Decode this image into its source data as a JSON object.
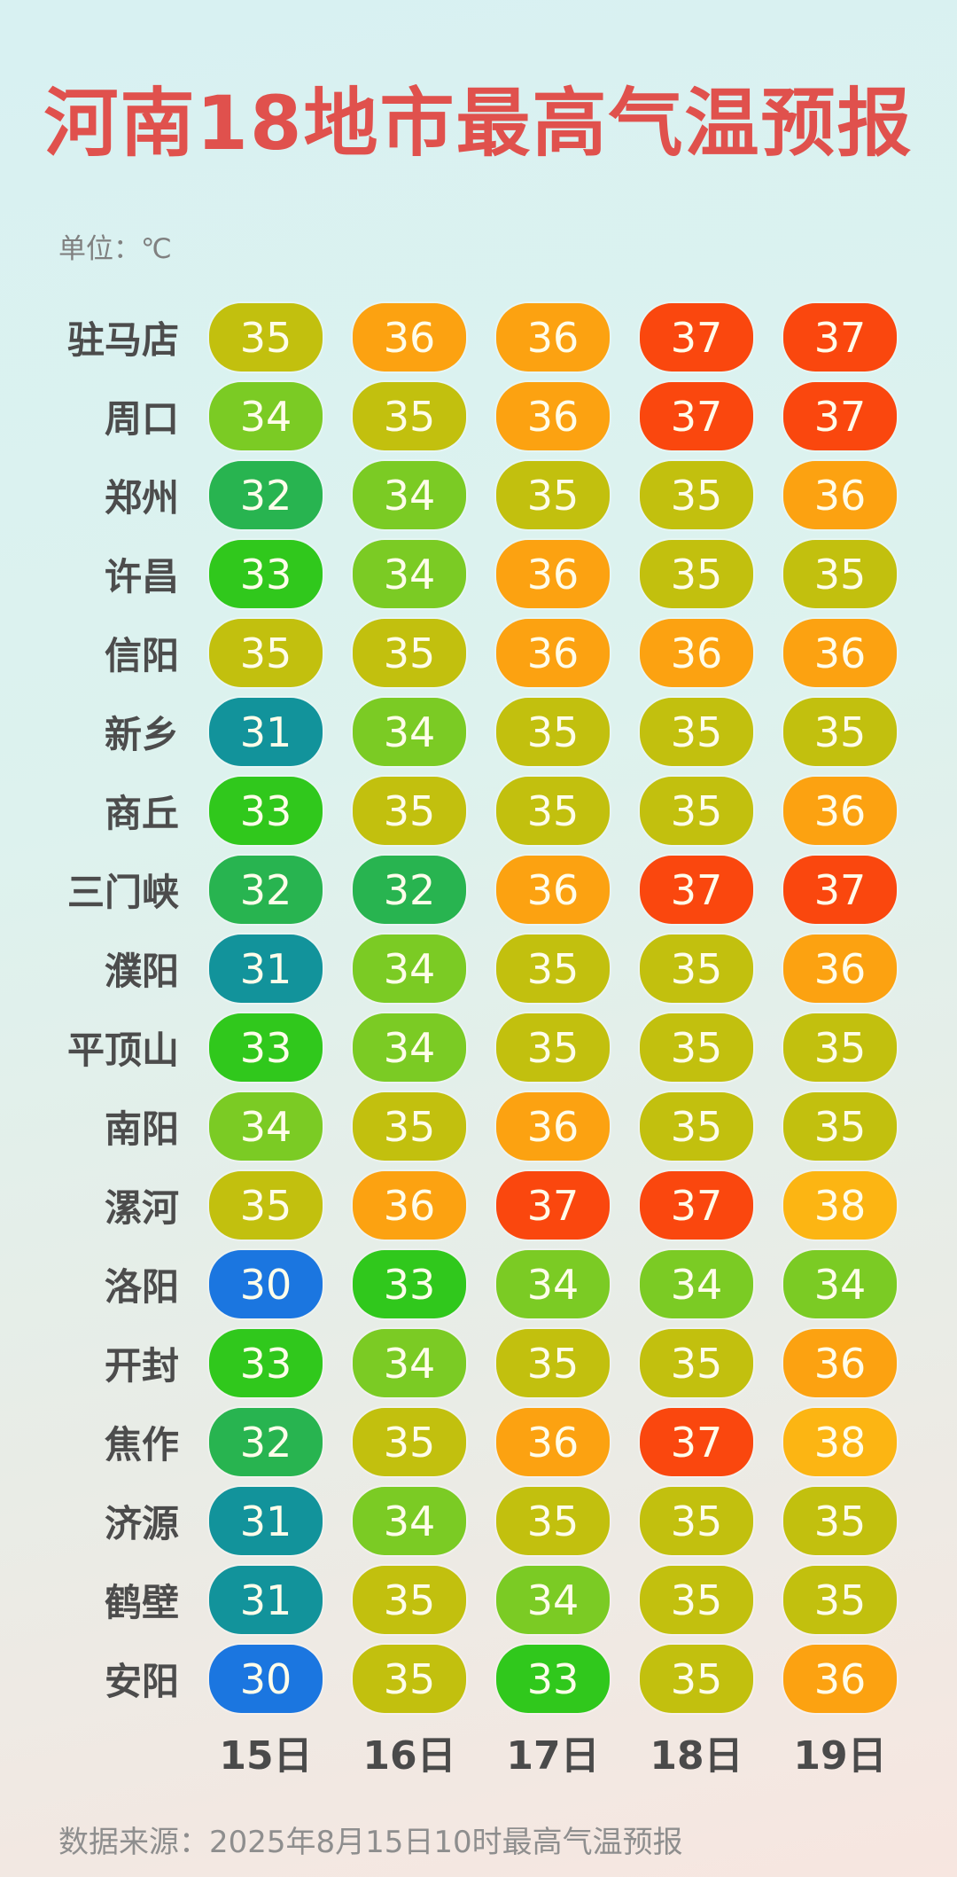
{
  "title": "河南18地市最高气温预报",
  "unit_label": "单位：℃",
  "footer": "数据来源：2025年8月15日10时最高气温预报",
  "chart_data": {
    "type": "heatmap",
    "title": "河南18地市最高气温预报",
    "unit": "℃",
    "columns": [
      "15日",
      "16日",
      "17日",
      "18日",
      "19日"
    ],
    "rows": [
      {
        "city": "驻马店",
        "values": [
          35,
          36,
          36,
          37,
          37
        ]
      },
      {
        "city": "周口",
        "values": [
          34,
          35,
          36,
          37,
          37
        ]
      },
      {
        "city": "郑州",
        "values": [
          32,
          34,
          35,
          35,
          36
        ]
      },
      {
        "city": "许昌",
        "values": [
          33,
          34,
          36,
          35,
          35
        ]
      },
      {
        "city": "信阳",
        "values": [
          35,
          35,
          36,
          36,
          36
        ]
      },
      {
        "city": "新乡",
        "values": [
          31,
          34,
          35,
          35,
          35
        ]
      },
      {
        "city": "商丘",
        "values": [
          33,
          35,
          35,
          35,
          36
        ]
      },
      {
        "city": "三门峡",
        "values": [
          32,
          32,
          36,
          37,
          37
        ]
      },
      {
        "city": "濮阳",
        "values": [
          31,
          34,
          35,
          35,
          36
        ]
      },
      {
        "city": "平顶山",
        "values": [
          33,
          34,
          35,
          35,
          35
        ]
      },
      {
        "city": "南阳",
        "values": [
          34,
          35,
          36,
          35,
          35
        ]
      },
      {
        "city": "漯河",
        "values": [
          35,
          36,
          37,
          37,
          38
        ]
      },
      {
        "city": "洛阳",
        "values": [
          30,
          33,
          34,
          34,
          34
        ]
      },
      {
        "city": "开封",
        "values": [
          33,
          34,
          35,
          35,
          36
        ]
      },
      {
        "city": "焦作",
        "values": [
          32,
          35,
          36,
          37,
          38
        ]
      },
      {
        "city": "济源",
        "values": [
          31,
          34,
          35,
          35,
          35
        ]
      },
      {
        "city": "鹤壁",
        "values": [
          31,
          35,
          34,
          35,
          35
        ]
      },
      {
        "city": "安阳",
        "values": [
          30,
          35,
          33,
          35,
          36
        ]
      }
    ],
    "temp_colors": {
      "30": "#1b76e0",
      "31": "#12939b",
      "32": "#28b450",
      "33": "#30c81c",
      "34": "#7bcb24",
      "35": "#c2c00e",
      "36": "#fca211",
      "37": "#fa470e",
      "38": "#fcb513"
    },
    "title_color": "#e0514d",
    "cell_text_color": "#fffdea",
    "city_label_color": "#4c4c4c"
  }
}
